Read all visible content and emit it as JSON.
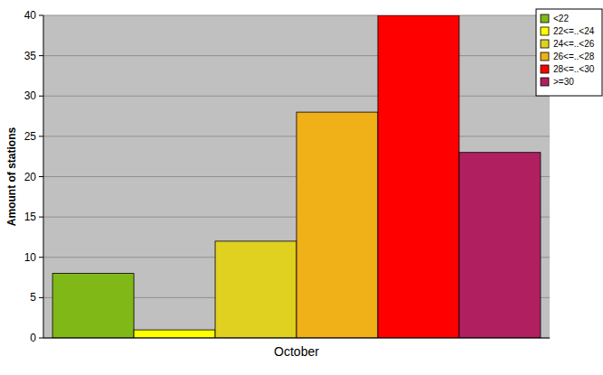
{
  "chart_data": {
    "type": "bar",
    "y_label": "Amount of stations",
    "categories": [
      "October"
    ],
    "series": [
      {
        "name": "<22",
        "color": "#80b818",
        "values": [
          8
        ]
      },
      {
        "name": "22<=..<24",
        "color": "#ffff00",
        "values": [
          1
        ]
      },
      {
        "name": "24<=..<26",
        "color": "#e0d020",
        "values": [
          12
        ]
      },
      {
        "name": "26<=..<28",
        "color": "#f0b018",
        "values": [
          28
        ]
      },
      {
        "name": "28<=..<30",
        "color": "#ff0000",
        "values": [
          40
        ]
      },
      {
        "name": ">=30",
        "color": "#b02060",
        "values": [
          23
        ]
      }
    ],
    "ylim": [
      0,
      40
    ],
    "yticks": [
      0,
      5,
      10,
      15,
      20,
      25,
      30,
      35,
      40
    ],
    "grid": true,
    "legend": "top-right"
  }
}
